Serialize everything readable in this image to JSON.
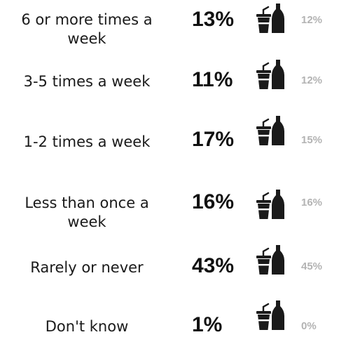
{
  "chart_data": {
    "type": "table",
    "rows": [
      {
        "label": "6 or more times a week",
        "value": "13%",
        "comparison": "12%"
      },
      {
        "label": "3-5 times a week",
        "value": "11%",
        "comparison": "12%"
      },
      {
        "label": "1-2 times a week",
        "value": "17%",
        "comparison": "15%"
      },
      {
        "label": "Less than once a week",
        "value": "16%",
        "comparison": "16%"
      },
      {
        "label": "Rarely or never",
        "value": "43%",
        "comparison": "45%"
      },
      {
        "label": "Don't know",
        "value": "1%",
        "comparison": "0%"
      }
    ],
    "icon": "drink-cup-and-bottle-icon",
    "colors": {
      "value": "#111111",
      "comparison": "#b3b3b3",
      "icon": "#1a1a1a"
    }
  }
}
